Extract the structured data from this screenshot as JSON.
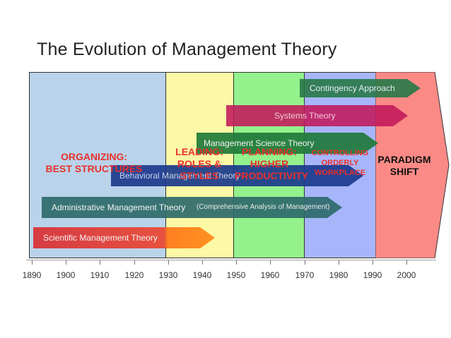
{
  "title": "The Evolution of Management Theory",
  "eras": [
    {
      "label": "ORGANIZING:\nBEST STRUCTURES",
      "color": "#e8312c"
    },
    {
      "label": "LEADING:\nROLES &\nSTYLES",
      "color": "#e8312c"
    },
    {
      "label": "PLANNING:\nHIGHER\nPRODUCTIVITY",
      "color": "#e8312c"
    },
    {
      "label": "CONTROLLING\nORDERLY\nWORKPLACE",
      "color": "#e8312c"
    },
    {
      "label": "PARADIGM\nSHIFT",
      "color": "#111111"
    }
  ],
  "theories": [
    {
      "label": "Contingency Approach",
      "color": "#2a7a4a"
    },
    {
      "label": "Systems Theory",
      "color": "#c2185b"
    },
    {
      "label": "Management Science Theory",
      "color": "#1f7a3a"
    },
    {
      "label": "Behavioral Management Theory",
      "color": "#1b3a8c"
    },
    {
      "label": "Administrative Management Theory",
      "color": "#2e6a6a"
    },
    {
      "label": "Scientific Management Theory",
      "color": "#e53935"
    }
  ],
  "admin_note": "(Comprehensive Analysis of Management)",
  "axis": {
    "ticks": [
      "1890",
      "1900",
      "1910",
      "1920",
      "1930",
      "1940",
      "1950",
      "1960",
      "1970",
      "1980",
      "1990",
      "2000"
    ]
  }
}
